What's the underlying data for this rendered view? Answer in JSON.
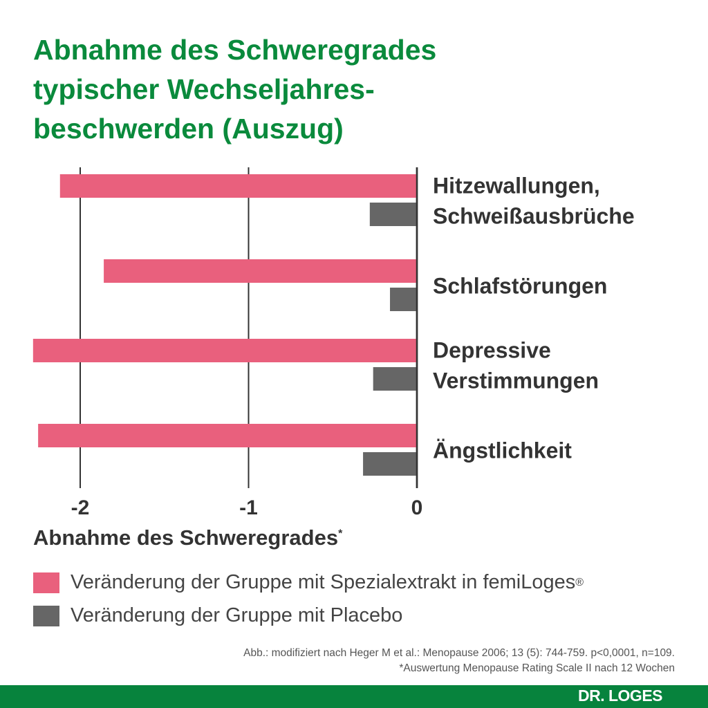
{
  "chart_data": {
    "type": "bar",
    "orientation": "horizontal",
    "title": "Abnahme des Schweregrades\ntypischer Wechseljahres-\nbeschwerden (Auszug)",
    "categories": [
      "Hitzewallungen,\nSchweißausbrüche",
      "Schlafstörungen",
      "Depressive\nVerstimmungen",
      "Ängstlichkeit"
    ],
    "series": [
      {
        "name": "Veränderung der Gruppe mit Spezialextrakt in femiLoges",
        "values": [
          -2.12,
          -1.86,
          -2.28,
          -2.25
        ],
        "color": "#e9607d"
      },
      {
        "name": "Veränderung der Gruppe mit Placebo",
        "values": [
          -0.28,
          -0.16,
          -0.26,
          -0.32
        ],
        "color": "#666666"
      }
    ],
    "xlabel": "Abnahme des Schweregrades",
    "xlabel_mark": "*",
    "xlim": [
      -2.35,
      0
    ],
    "xticks": [
      -2,
      -1,
      0
    ],
    "xtick_labels": [
      "-2",
      "-1",
      "0"
    ],
    "grid": true,
    "legend_position": "bottom-left"
  },
  "legend": {
    "item1": "Veränderung der Gruppe mit Spezialextrakt in femiLoges",
    "item1_mark": "®",
    "item2": "Veränderung der Gruppe mit Placebo"
  },
  "notes": {
    "source": "Abb.: modifiziert nach Heger M et al.: Menopause 2006; 13 (5): 744-759. p<0,0001, n=109.",
    "footnote": "*Auswertung Menopause Rating Scale II nach 12 Wochen"
  },
  "footer": {
    "brand": "DR. LOGES",
    "color": "#07833d"
  }
}
